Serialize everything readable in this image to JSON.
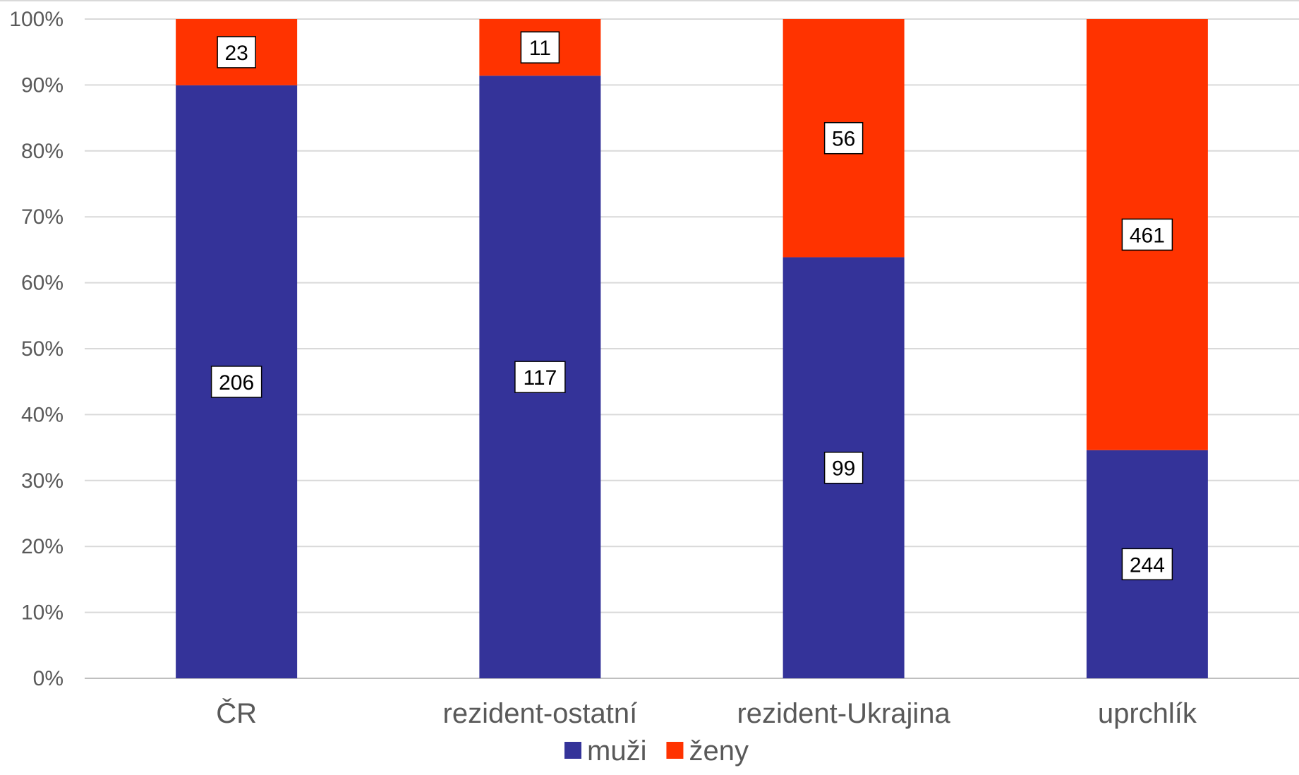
{
  "chart_data": {
    "type": "bar",
    "stacked": "percent",
    "categories": [
      "ČR",
      "rezident-ostatní",
      "rezident-Ukrajina",
      "uprchlík"
    ],
    "series": [
      {
        "name": "muži",
        "color": "#343399",
        "values": [
          206,
          117,
          99,
          244
        ]
      },
      {
        "name": "ženy",
        "color": "#FF3300",
        "values": [
          23,
          11,
          56,
          461
        ]
      }
    ],
    "y_ticks": [
      "0%",
      "10%",
      "20%",
      "30%",
      "40%",
      "50%",
      "60%",
      "70%",
      "80%",
      "90%",
      "100%"
    ],
    "ylim": [
      0,
      100
    ],
    "grid": true,
    "legend_position": "bottom-center"
  }
}
